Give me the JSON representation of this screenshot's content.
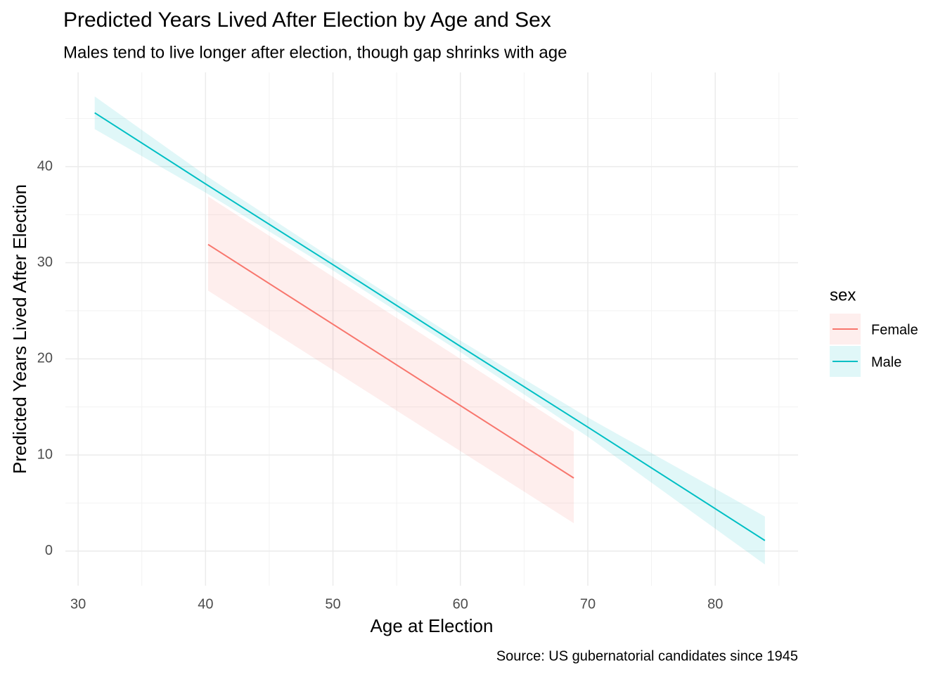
{
  "chart_data": {
    "type": "line",
    "title": "Predicted Years Lived After Election by Age and Sex",
    "subtitle": "Males tend to live longer after election, though gap shrinks with age",
    "x_label": "Age at Election",
    "y_label": "Predicted Years Lived After Election",
    "caption": "Source: US gubernatorial candidates since 1945",
    "legend_title": "sex",
    "legend_position": "right",
    "grid": true,
    "minor_grid": true,
    "xlim": [
      29,
      86.5
    ],
    "ylim": [
      -3.6,
      49.8
    ],
    "xticks": [
      30,
      40,
      50,
      60,
      70,
      80
    ],
    "yticks": [
      0,
      10,
      20,
      30,
      40
    ],
    "series": [
      {
        "name": "Female",
        "color": "#F8766D",
        "x": [
          40.2,
          68.9
        ],
        "values": [
          31.9,
          7.6
        ],
        "lower": [
          27.1,
          2.9
        ],
        "upper": [
          36.9,
          12.4
        ]
      },
      {
        "name": "Male",
        "color": "#00BFC4",
        "x": [
          31.3,
          40,
          50,
          60,
          70,
          83.9
        ],
        "values": [
          45.6,
          38.2,
          29.8,
          21.3,
          12.9,
          1.1
        ],
        "lower": [
          43.9,
          37.3,
          29.2,
          20.7,
          11.9,
          -1.4
        ],
        "upper": [
          47.3,
          39.1,
          30.4,
          21.9,
          13.9,
          3.6
        ]
      }
    ]
  }
}
